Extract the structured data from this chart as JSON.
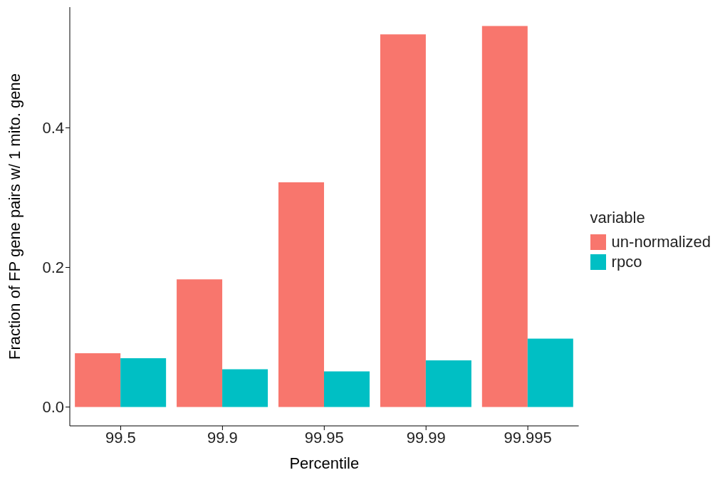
{
  "chart_data": {
    "type": "bar",
    "xlabel": "Percentile",
    "ylabel": "Fraction of FP gene pairs w/ 1 mito. gene",
    "legend_title": "variable",
    "legend": "right",
    "categories": [
      "99.5",
      "99.9",
      "99.95",
      "99.99",
      "99.995"
    ],
    "series": [
      {
        "name": "un-normalized",
        "color": "#f8766d",
        "values": [
          0.077,
          0.183,
          0.322,
          0.534,
          0.546
        ]
      },
      {
        "name": "rpco",
        "color": "#00bfc4",
        "values": [
          0.07,
          0.054,
          0.051,
          0.067,
          0.098
        ]
      }
    ],
    "ylim": [
      -0.027,
      0.573
    ],
    "yticks": [
      {
        "value": 0,
        "label": "0.0"
      },
      {
        "value": 0.2,
        "label": "0.2"
      },
      {
        "value": 0.4,
        "label": "0.4"
      }
    ],
    "grid": false
  }
}
